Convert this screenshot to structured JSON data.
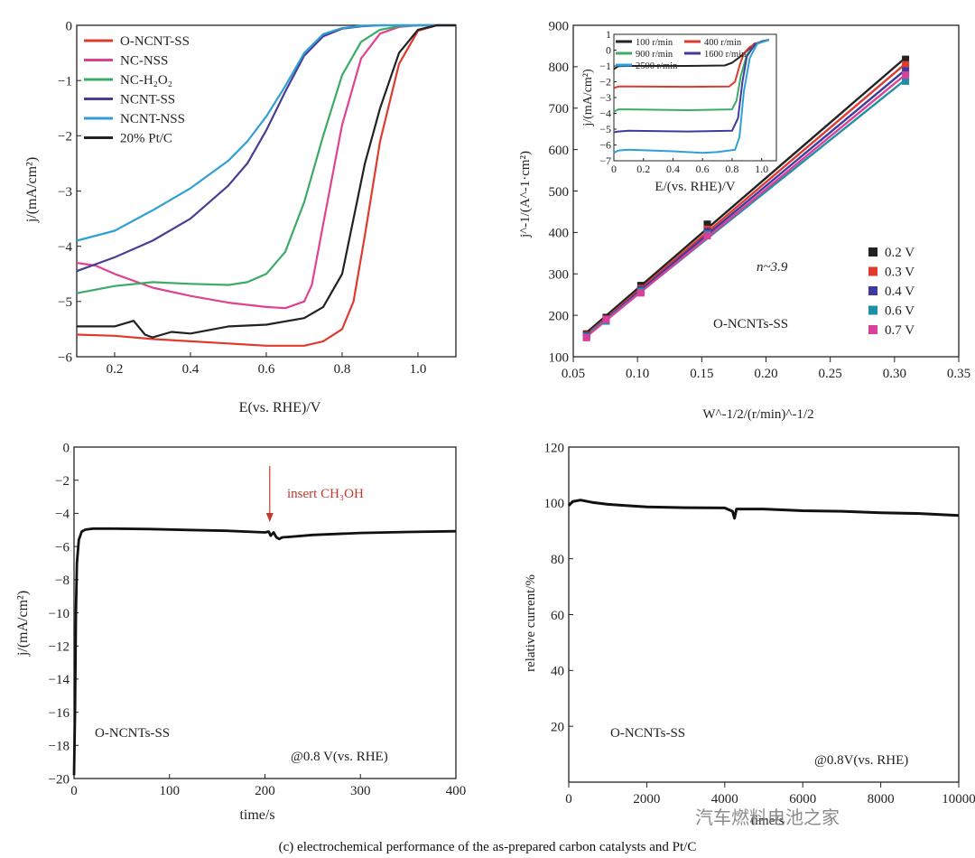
{
  "caption": "(c) electrochemical performance of the as-prepared carbon catalysts and Pt/C",
  "watermark": "汽车燃料电池之家",
  "chart_data": [
    {
      "type": "line",
      "panel": "top-left",
      "xlabel": "E(vs. RHE)/V",
      "ylabel": "j/(mA/cm²)",
      "xlim": [
        0.1,
        1.1
      ],
      "ylim": [
        -6,
        0
      ],
      "xticks": [
        0.2,
        0.4,
        0.6,
        0.8,
        1.0
      ],
      "xtick_labels": [
        "0.2",
        "0.4",
        "0.6",
        "0.8",
        "1.0"
      ],
      "yticks": [
        0,
        -1,
        -2,
        -3,
        -4,
        -5,
        -6
      ],
      "ytick_labels": [
        "0",
        "−1",
        "−2",
        "−3",
        "−4",
        "−5",
        "−6"
      ],
      "legend_position": "top-left",
      "series": [
        {
          "name": "O-NCNT-SS",
          "color": "#e03a2f",
          "x": [
            0.1,
            0.2,
            0.3,
            0.4,
            0.5,
            0.6,
            0.7,
            0.75,
            0.8,
            0.83,
            0.86,
            0.9,
            0.95,
            1.0,
            1.05,
            1.1
          ],
          "y": [
            -5.6,
            -5.62,
            -5.68,
            -5.72,
            -5.76,
            -5.8,
            -5.8,
            -5.72,
            -5.5,
            -5.0,
            -3.8,
            -2.1,
            -0.7,
            -0.1,
            0,
            0
          ]
        },
        {
          "name": "NC-NSS",
          "color": "#e2418f",
          "x": [
            0.1,
            0.15,
            0.2,
            0.3,
            0.4,
            0.5,
            0.6,
            0.65,
            0.7,
            0.72,
            0.75,
            0.8,
            0.85,
            0.9,
            0.95,
            1.0,
            1.1
          ],
          "y": [
            -4.3,
            -4.35,
            -4.5,
            -4.75,
            -4.9,
            -5.02,
            -5.1,
            -5.12,
            -5.0,
            -4.7,
            -3.6,
            -1.8,
            -0.6,
            -0.15,
            -0.03,
            0,
            0
          ]
        },
        {
          "name": "NC-H₂O₂",
          "color": "#3cab66",
          "x": [
            0.1,
            0.2,
            0.3,
            0.4,
            0.5,
            0.55,
            0.6,
            0.65,
            0.7,
            0.75,
            0.8,
            0.85,
            0.9,
            0.95,
            1.0,
            1.1
          ],
          "y": [
            -4.85,
            -4.72,
            -4.65,
            -4.68,
            -4.7,
            -4.65,
            -4.5,
            -4.1,
            -3.2,
            -2.0,
            -0.9,
            -0.3,
            -0.08,
            -0.02,
            0,
            0
          ]
        },
        {
          "name": "NCNT-SS",
          "color": "#4a3d95",
          "x": [
            0.1,
            0.2,
            0.3,
            0.4,
            0.5,
            0.55,
            0.6,
            0.65,
            0.7,
            0.75,
            0.8,
            0.85,
            0.9,
            1.1
          ],
          "y": [
            -4.45,
            -4.2,
            -3.9,
            -3.5,
            -2.9,
            -2.5,
            -1.9,
            -1.2,
            -0.55,
            -0.2,
            -0.06,
            -0.02,
            0,
            0
          ]
        },
        {
          "name": "NCNT-NSS",
          "color": "#2f9fd6",
          "x": [
            0.1,
            0.2,
            0.3,
            0.4,
            0.5,
            0.55,
            0.6,
            0.65,
            0.7,
            0.75,
            0.8,
            0.85,
            0.9,
            1.1
          ],
          "y": [
            -3.9,
            -3.72,
            -3.35,
            -2.95,
            -2.45,
            -2.1,
            -1.65,
            -1.1,
            -0.5,
            -0.16,
            -0.05,
            -0.01,
            0,
            0
          ]
        },
        {
          "name": "20% Pt/C",
          "color": "#222222",
          "x": [
            0.1,
            0.2,
            0.25,
            0.28,
            0.3,
            0.35,
            0.4,
            0.5,
            0.6,
            0.7,
            0.75,
            0.8,
            0.83,
            0.86,
            0.9,
            0.95,
            1.0,
            1.05,
            1.1
          ],
          "y": [
            -5.45,
            -5.45,
            -5.35,
            -5.6,
            -5.65,
            -5.55,
            -5.58,
            -5.45,
            -5.42,
            -5.3,
            -5.1,
            -4.5,
            -3.5,
            -2.5,
            -1.5,
            -0.5,
            -0.08,
            0,
            0
          ]
        }
      ]
    },
    {
      "type": "scatter",
      "panel": "top-right",
      "xlabel": "W^-1/2/(r/min)^-1/2",
      "ylabel": "j^-1/(A^-1·cm²)",
      "xlim": [
        0.05,
        0.35
      ],
      "ylim": [
        100,
        900
      ],
      "xticks": [
        0.05,
        0.1,
        0.15,
        0.2,
        0.25,
        0.3,
        0.35
      ],
      "xtick_labels": [
        "0.05",
        "0.10",
        "0.15",
        "0.20",
        "0.25",
        "0.30",
        "0.35"
      ],
      "yticks": [
        100,
        200,
        300,
        400,
        500,
        600,
        700,
        800,
        900
      ],
      "ytick_labels": [
        "100",
        "200",
        "300",
        "400",
        "500",
        "600",
        "700",
        "800",
        "900"
      ],
      "annotations": [
        "n~3.9",
        "O-NCNTs-SS"
      ],
      "legend_position": "right",
      "x": [
        0.0603,
        0.0756,
        0.1026,
        0.1543,
        0.3086
      ],
      "series": [
        {
          "name": "0.2 V",
          "color": "#222222",
          "values": [
            155,
            195,
            272,
            420,
            818
          ]
        },
        {
          "name": "0.3 V",
          "color": "#e03a2f",
          "values": [
            152,
            191,
            265,
            408,
            805
          ]
        },
        {
          "name": "0.4 V",
          "color": "#3f3a9e",
          "values": [
            150,
            188,
            262,
            402,
            790
          ]
        },
        {
          "name": "0.6 V",
          "color": "#1f8fa8",
          "values": [
            148,
            186,
            258,
            396,
            765
          ]
        },
        {
          "name": "0.7 V",
          "color": "#d9409a",
          "values": [
            146,
            190,
            254,
            392,
            780
          ]
        }
      ],
      "inset": {
        "type": "line",
        "xlabel": "E/(vs. RHE)/V",
        "ylabel": "j/(mA/cm²)",
        "xlim": [
          0,
          1.1
        ],
        "ylim": [
          -7,
          1
        ],
        "xticks": [
          0,
          0.2,
          0.4,
          0.6,
          0.8,
          1.0
        ],
        "xtick_labels": [
          "0",
          "0.2",
          "0.4",
          "0.6",
          "0.8",
          "1.0"
        ],
        "yticks": [
          1,
          0,
          -1,
          -2,
          -3,
          -4,
          -5,
          -6,
          -7
        ],
        "ytick_labels": [
          "1",
          "0",
          "−1",
          "−2",
          "−3",
          "−4",
          "−5",
          "−6",
          "−7"
        ],
        "series": [
          {
            "name": "100 r/min",
            "color": "#222222",
            "plateau": -1.0,
            "x": [
              0,
              0.03,
              0.1,
              0.5,
              0.75,
              0.8,
              0.85,
              0.9,
              0.95,
              1.05
            ],
            "y": [
              -1.2,
              -1.02,
              -1.0,
              -1.0,
              -0.97,
              -0.8,
              -0.45,
              -0.05,
              0.4,
              0.65
            ]
          },
          {
            "name": "400 r/min",
            "color": "#e03a2f",
            "x": [
              0,
              0.03,
              0.1,
              0.5,
              0.78,
              0.82,
              0.85,
              0.88,
              0.92,
              0.97,
              1.05
            ],
            "y": [
              -2.4,
              -2.3,
              -2.3,
              -2.32,
              -2.3,
              -2.0,
              -1.0,
              -0.2,
              0.2,
              0.45,
              0.65
            ]
          },
          {
            "name": "900 r/min",
            "color": "#3cab66",
            "x": [
              0,
              0.03,
              0.1,
              0.5,
              0.8,
              0.83,
              0.86,
              0.9,
              0.95,
              1.0,
              1.05
            ],
            "y": [
              -3.9,
              -3.75,
              -3.75,
              -3.8,
              -3.75,
              -3.2,
              -1.6,
              -0.3,
              0.3,
              0.55,
              0.65
            ]
          },
          {
            "name": "1600 r/min",
            "color": "#3f3a9e",
            "x": [
              0,
              0.03,
              0.1,
              0.5,
              0.8,
              0.84,
              0.87,
              0.9,
              0.95,
              1.0,
              1.05
            ],
            "y": [
              -5.2,
              -5.15,
              -5.1,
              -5.15,
              -5.1,
              -4.3,
              -2.0,
              -0.4,
              0.3,
              0.55,
              0.65
            ]
          },
          {
            "name": "2500 r/min",
            "color": "#2f9fd6",
            "x": [
              0,
              0.03,
              0.1,
              0.4,
              0.6,
              0.7,
              0.82,
              0.85,
              0.88,
              0.92,
              0.97,
              1.05
            ],
            "y": [
              -6.5,
              -6.35,
              -6.3,
              -6.4,
              -6.5,
              -6.45,
              -6.3,
              -5.5,
              -2.6,
              -0.5,
              0.4,
              0.65
            ]
          }
        ]
      }
    },
    {
      "type": "line",
      "panel": "bottom-left",
      "xlabel": "time/s",
      "ylabel": "j/(mA/cm²)",
      "xlim": [
        0,
        400
      ],
      "ylim": [
        -20,
        0
      ],
      "xticks": [
        0,
        100,
        200,
        300,
        400
      ],
      "xtick_labels": [
        "0",
        "100",
        "200",
        "300",
        "400"
      ],
      "yticks": [
        0,
        -2,
        -4,
        -6,
        -8,
        -10,
        -12,
        -14,
        -16,
        -18,
        -20
      ],
      "ytick_labels": [
        "0",
        "−2",
        "−4",
        "−6",
        "−8",
        "−10",
        "−12",
        "−14",
        "−16",
        "−18",
        "−20"
      ],
      "annotations": [
        "insert CH₃OH",
        "O-NCNTs-SS",
        "@0.8 V(vs. RHE)"
      ],
      "arrow_at_x": 205,
      "series": [
        {
          "name": "",
          "color": "#111111",
          "x": [
            0,
            1,
            2,
            3,
            5,
            8,
            12,
            20,
            40,
            80,
            120,
            160,
            200,
            204,
            206,
            209,
            212,
            215,
            218,
            225,
            250,
            300,
            350,
            400
          ],
          "y": [
            -19.8,
            -16,
            -10,
            -7,
            -5.6,
            -5.1,
            -4.98,
            -4.92,
            -4.92,
            -4.95,
            -5.0,
            -5.05,
            -5.15,
            -5.1,
            -5.35,
            -5.15,
            -5.45,
            -5.55,
            -5.45,
            -5.42,
            -5.3,
            -5.18,
            -5.12,
            -5.08
          ]
        }
      ]
    },
    {
      "type": "line",
      "panel": "bottom-right",
      "xlabel": "time/s",
      "ylabel": "relative current/%",
      "xlim": [
        0,
        10000
      ],
      "ylim": [
        0,
        120
      ],
      "xticks": [
        0,
        2000,
        4000,
        6000,
        8000,
        10000
      ],
      "xtick_labels": [
        "0",
        "2000",
        "4000",
        "6000",
        "8000",
        "10000"
      ],
      "yticks": [
        0,
        20,
        40,
        60,
        80,
        100,
        120
      ],
      "ytick_labels": [
        "",
        "20",
        "40",
        "60",
        "80",
        "100",
        "120"
      ],
      "annotations": [
        "O-NCNTs-SS",
        "@0.8V(vs. RHE)"
      ],
      "series": [
        {
          "name": "",
          "color": "#111111",
          "x": [
            0,
            100,
            300,
            600,
            1000,
            1500,
            2000,
            3000,
            4000,
            4200,
            4250,
            4300,
            5000,
            6000,
            7000,
            8000,
            9000,
            10000
          ],
          "y": [
            99,
            100.5,
            101,
            100.2,
            99.5,
            99,
            98.6,
            98.3,
            98.2,
            97,
            94.5,
            97.8,
            97.8,
            97.2,
            97,
            96.5,
            96.2,
            95.5
          ]
        }
      ]
    }
  ]
}
